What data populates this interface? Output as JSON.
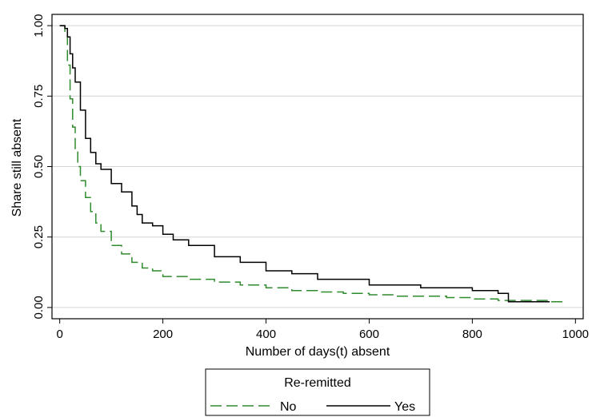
{
  "chart_data": {
    "type": "line",
    "xlabel": "Number of days(t) absent",
    "ylabel": "Share still absent",
    "xlim": [
      -15,
      1015
    ],
    "ylim": [
      -0.04,
      1.04
    ],
    "xticks": [
      0,
      200,
      400,
      600,
      800,
      1000
    ],
    "xtick_labels": [
      "0",
      "200",
      "400",
      "600",
      "800",
      "1000"
    ],
    "yticks": [
      0,
      0.25,
      0.5,
      0.75,
      1
    ],
    "ytick_labels": [
      "0.00",
      "0.25",
      "0.50",
      "0.75",
      "1.00"
    ],
    "grid": "horizontal",
    "legend": {
      "title": "Re-remitted",
      "position": "bottom-center"
    },
    "series": [
      {
        "name": "No",
        "style": "dashed",
        "color": "#2e8b2e",
        "x": [
          0,
          10,
          15,
          20,
          25,
          30,
          35,
          40,
          50,
          60,
          70,
          80,
          100,
          120,
          140,
          160,
          180,
          200,
          250,
          300,
          350,
          400,
          450,
          500,
          550,
          600,
          650,
          700,
          750,
          800,
          850,
          900,
          950,
          980
        ],
        "y": [
          1.0,
          0.98,
          0.86,
          0.74,
          0.64,
          0.56,
          0.5,
          0.45,
          0.39,
          0.34,
          0.3,
          0.27,
          0.22,
          0.19,
          0.16,
          0.14,
          0.13,
          0.11,
          0.1,
          0.09,
          0.08,
          0.07,
          0.06,
          0.055,
          0.05,
          0.045,
          0.04,
          0.04,
          0.035,
          0.03,
          0.025,
          0.025,
          0.02,
          0.02
        ]
      },
      {
        "name": "Yes",
        "style": "solid",
        "color": "#000000",
        "x": [
          0,
          10,
          15,
          20,
          25,
          30,
          40,
          50,
          60,
          70,
          80,
          100,
          120,
          140,
          150,
          160,
          180,
          200,
          220,
          250,
          300,
          350,
          400,
          450,
          500,
          550,
          600,
          650,
          700,
          750,
          800,
          850,
          870,
          900,
          950
        ],
        "y": [
          1.0,
          0.99,
          0.96,
          0.9,
          0.85,
          0.8,
          0.7,
          0.6,
          0.55,
          0.51,
          0.49,
          0.44,
          0.41,
          0.36,
          0.33,
          0.3,
          0.29,
          0.26,
          0.24,
          0.22,
          0.18,
          0.16,
          0.13,
          0.12,
          0.1,
          0.1,
          0.08,
          0.08,
          0.07,
          0.07,
          0.06,
          0.05,
          0.02,
          0.02,
          0.02
        ]
      }
    ]
  }
}
